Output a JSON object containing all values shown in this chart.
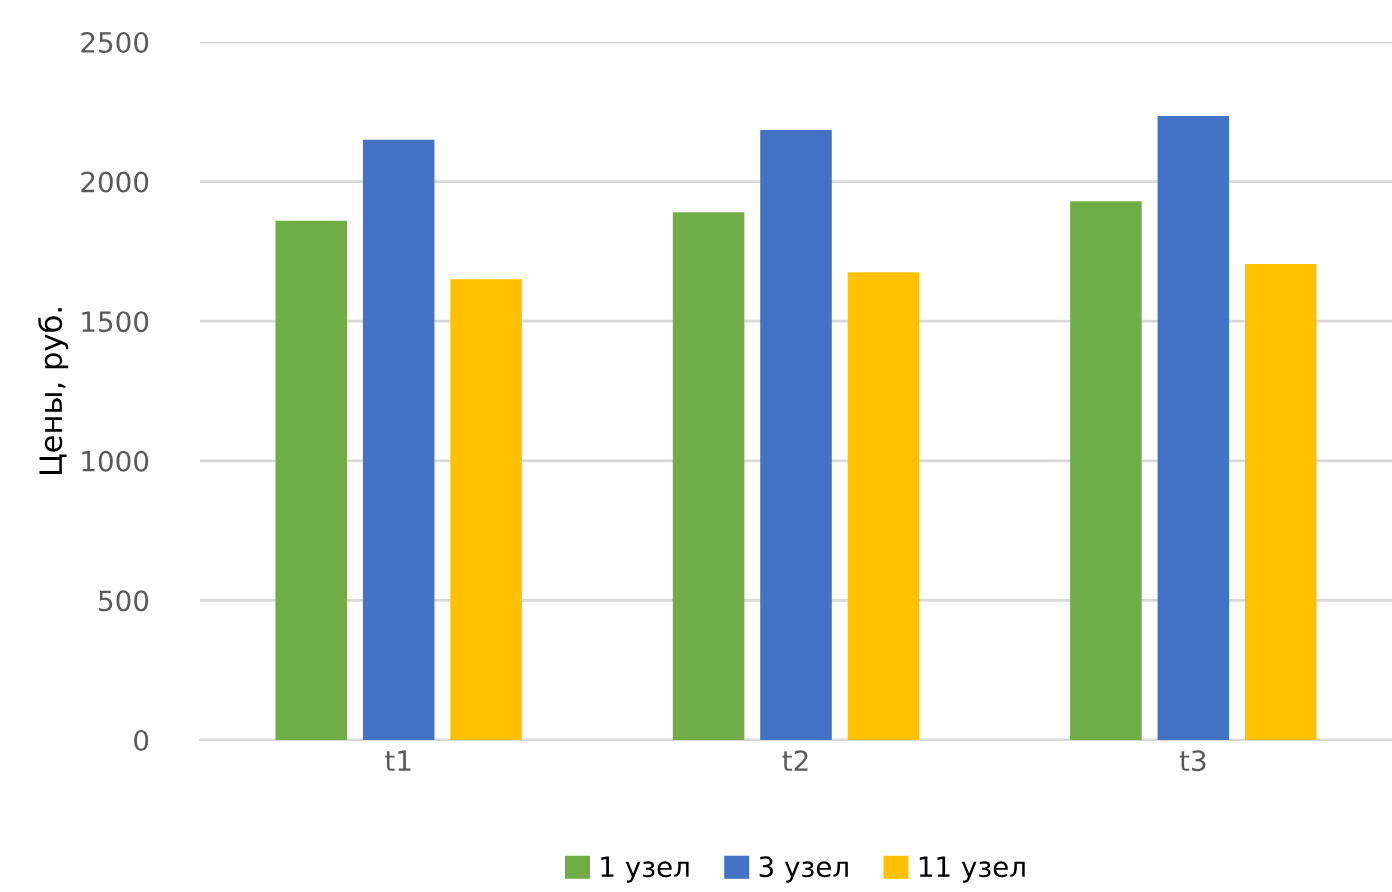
{
  "chart_data": {
    "type": "bar",
    "ylabel": "Цены, руб.",
    "categories": [
      "t1",
      "t2",
      "t3"
    ],
    "series": [
      {
        "name": "1 узел",
        "color": "#70ad47",
        "values": [
          1860,
          1890,
          1930
        ]
      },
      {
        "name": "3 узел",
        "color": "#4472c4",
        "values": [
          2150,
          2185,
          2235
        ]
      },
      {
        "name": "11 узел",
        "color": "#ffc000",
        "values": [
          1650,
          1675,
          1705
        ]
      }
    ],
    "ylim": [
      0,
      2500
    ],
    "yticks": [
      0,
      500,
      1000,
      1500,
      2000,
      2500
    ],
    "grid": "y",
    "legend": "bottom"
  }
}
